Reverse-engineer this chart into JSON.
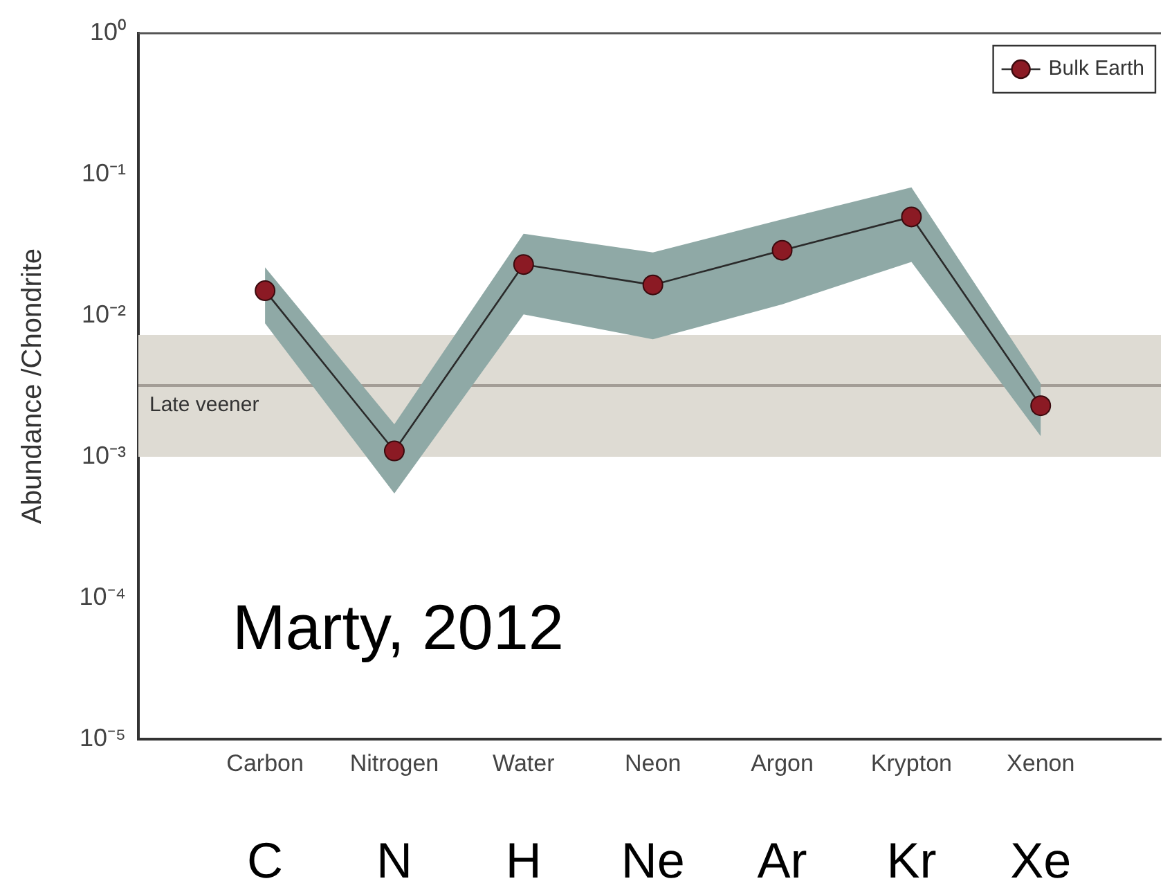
{
  "chart_data": {
    "type": "line",
    "ylabel": "Abundance /Chondrite",
    "categories": [
      "Carbon",
      "Nitrogen",
      "Water",
      "Neon",
      "Argon",
      "Krypton",
      "Xenon"
    ],
    "series": [
      {
        "name": "Bulk Earth",
        "color": "#8b1a24",
        "values": [
          0.015,
          0.0011,
          0.023,
          0.0165,
          0.029,
          0.05,
          0.0023
        ],
        "lower": [
          0.0088,
          0.00055,
          0.0102,
          0.0068,
          0.012,
          0.024,
          0.0014
        ],
        "upper": [
          0.022,
          0.0017,
          0.038,
          0.028,
          0.048,
          0.081,
          0.0033
        ]
      }
    ],
    "log": "y",
    "ylim": [
      1e-05,
      1
    ],
    "yticks": [
      {
        "value": 1e-05,
        "label": "10⁻⁵"
      },
      {
        "value": 0.0001,
        "label": "10⁻⁴"
      },
      {
        "value": 0.001,
        "label": "10⁻³"
      },
      {
        "value": 0.01,
        "label": "10⁻²"
      },
      {
        "value": 0.1,
        "label": "10⁻¹"
      },
      {
        "value": 1,
        "label": "10⁰"
      }
    ],
    "bands": [
      {
        "axis": "y",
        "from": 0.001,
        "to": 0.0073,
        "color": "#dedbd3"
      }
    ],
    "ref_lines": [
      {
        "axis": "y",
        "value": 0.0032,
        "label": "Late veener",
        "color": "#a39d96"
      }
    ],
    "annotations": [
      "Marty, 2012",
      "C",
      "N",
      "H",
      "Ne",
      "Ar",
      "Kr",
      "Xe"
    ],
    "legend": "top right",
    "marker": "circle",
    "line_style": "solid",
    "grid": false
  }
}
